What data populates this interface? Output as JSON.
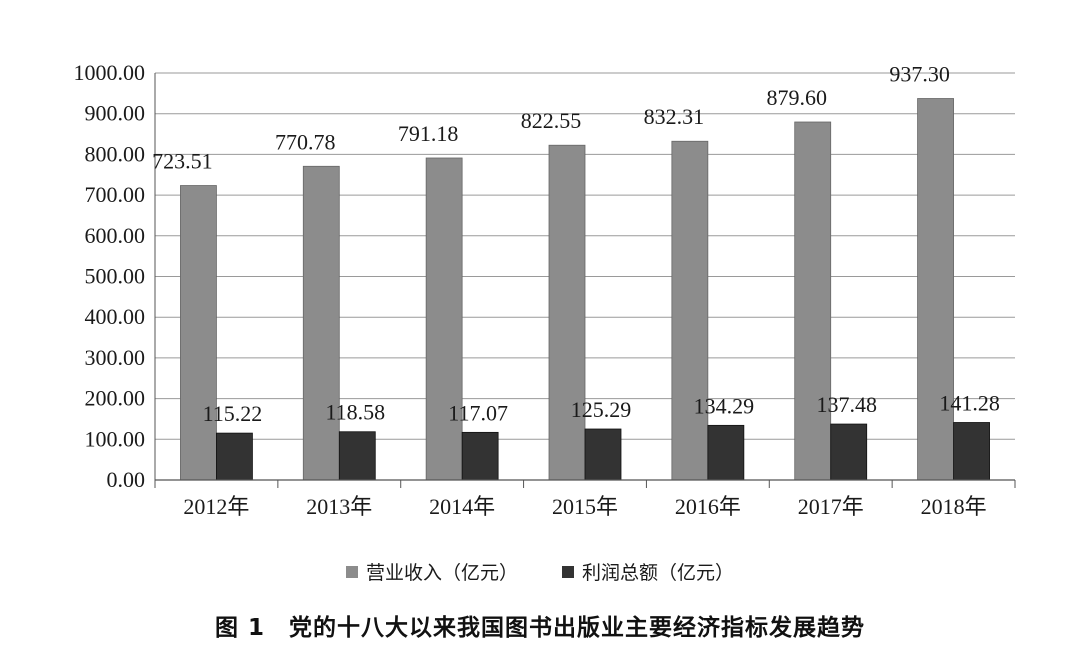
{
  "chart_data": {
    "type": "bar",
    "categories": [
      "2012年",
      "2013年",
      "2014年",
      "2015年",
      "2016年",
      "2017年",
      "2018年"
    ],
    "series": [
      {
        "name": "营业收入（亿元）",
        "values": [
          723.51,
          770.78,
          791.18,
          822.55,
          832.31,
          879.6,
          937.3
        ],
        "labels": [
          "723.51",
          "770.78",
          "791.18",
          "822.55",
          "832.31",
          "879.60",
          "937.30"
        ],
        "color": "#8c8c8c"
      },
      {
        "name": "利润总额（亿元）",
        "values": [
          115.22,
          118.58,
          117.07,
          125.29,
          134.29,
          137.48,
          141.28
        ],
        "labels": [
          "115.22",
          "118.58",
          "117.07",
          "125.29",
          "134.29",
          "137.48",
          "141.28"
        ],
        "color": "#333333"
      }
    ],
    "y_ticks": [
      "0.00",
      "100.00",
      "200.00",
      "300.00",
      "400.00",
      "500.00",
      "600.00",
      "700.00",
      "800.00",
      "900.00",
      "1000.00"
    ],
    "ylim": [
      0,
      1000
    ],
    "grid": true,
    "legend_position": "bottom"
  },
  "caption": "图 1　党的十八大以来我国图书出版业主要经济指标发展趋势"
}
